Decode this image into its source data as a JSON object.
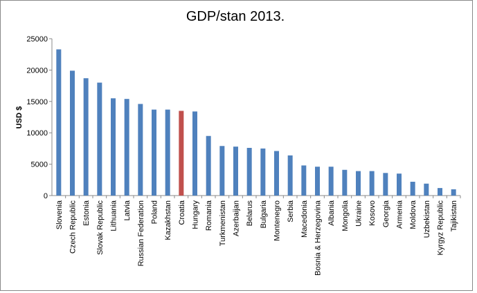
{
  "chart_data": {
    "type": "bar",
    "title": "GDP/stan 2013.",
    "y_label": "USD $",
    "categories": [
      "Slovenia",
      "Czech Republic",
      "Estonia",
      "Slovak Republic",
      "Lithuania",
      "Latvia",
      "Russian Federation",
      "Poland",
      "Kazakhstan",
      "Croatia",
      "Hungary",
      "Romania",
      "Turkmenistan",
      "Azerbaijan",
      "Belarus",
      "Bulgaria",
      "Montenegro",
      "Serbia",
      "Macedonia",
      "Bosnia & Herzegovina",
      "Albania",
      "Mongolia",
      "Ukraine",
      "Kosovo",
      "Georgia",
      "Armenia",
      "Moldova",
      "Uzbekistan",
      "Kyrgyz Republic",
      "Tajikistan"
    ],
    "values": [
      23300,
      19900,
      18700,
      18000,
      15500,
      15400,
      14600,
      13700,
      13700,
      13500,
      13400,
      9500,
      7900,
      7800,
      7600,
      7500,
      7100,
      6400,
      4800,
      4600,
      4600,
      4100,
      3900,
      3900,
      3600,
      3500,
      2200,
      1900,
      1200,
      1000
    ],
    "colors": [
      "#4f81bd",
      "#4f81bd",
      "#4f81bd",
      "#4f81bd",
      "#4f81bd",
      "#4f81bd",
      "#4f81bd",
      "#4f81bd",
      "#4f81bd",
      "#c0504d",
      "#4f81bd",
      "#4f81bd",
      "#4f81bd",
      "#4f81bd",
      "#4f81bd",
      "#4f81bd",
      "#4f81bd",
      "#4f81bd",
      "#4f81bd",
      "#4f81bd",
      "#4f81bd",
      "#4f81bd",
      "#4f81bd",
      "#4f81bd",
      "#4f81bd",
      "#4f81bd",
      "#4f81bd",
      "#4f81bd",
      "#4f81bd",
      "#4f81bd"
    ],
    "ylim": [
      0,
      25000
    ],
    "yticks": [
      0,
      5000,
      10000,
      15000,
      20000,
      25000
    ],
    "grid": false
  }
}
